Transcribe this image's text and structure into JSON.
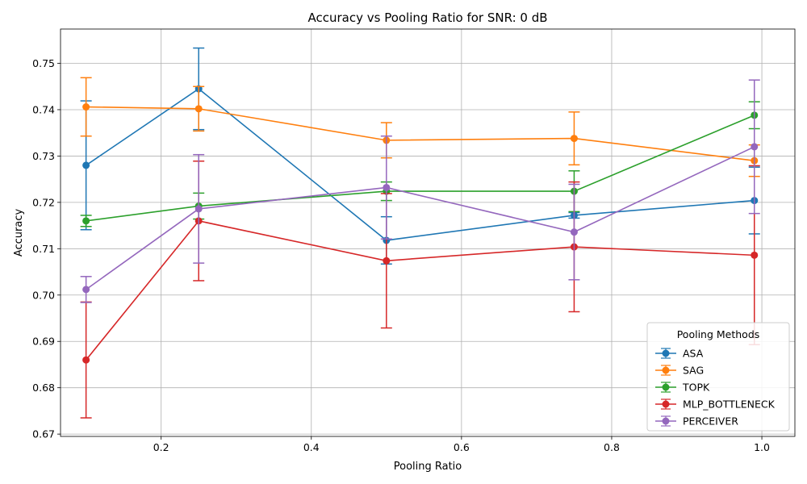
{
  "chart_data": {
    "type": "line",
    "title": "Accuracy vs Pooling Ratio for SNR: 0 dB",
    "xlabel": "Pooling Ratio",
    "ylabel": "Accuracy",
    "x": [
      0.1,
      0.25,
      0.5,
      0.75,
      0.99
    ],
    "xlim": [
      0.066,
      1.044
    ],
    "ylim": [
      0.6695,
      0.7574
    ],
    "xticks": [
      0.2,
      0.4,
      0.6,
      0.8,
      1.0
    ],
    "xtick_labels": [
      "0.2",
      "0.4",
      "0.6",
      "0.8",
      "1.0"
    ],
    "yticks": [
      0.67,
      0.68,
      0.69,
      0.7,
      0.71,
      0.72,
      0.73,
      0.74,
      0.75
    ],
    "ytick_labels": [
      "0.67",
      "0.68",
      "0.69",
      "0.70",
      "0.71",
      "0.72",
      "0.73",
      "0.74",
      "0.75"
    ],
    "grid": true,
    "legend_title": "Pooling Methods",
    "legend_position": "lower-right",
    "series": [
      {
        "name": "ASA",
        "color": "#1f77b4",
        "values": [
          0.728,
          0.7445,
          0.7118,
          0.7172,
          0.7204
        ],
        "errors": [
          0.0139,
          0.0088,
          0.0051,
          0.0006,
          0.0072
        ]
      },
      {
        "name": "SAG",
        "color": "#ff7f0e",
        "values": [
          0.7406,
          0.7402,
          0.7334,
          0.7338,
          0.729
        ],
        "errors": [
          0.0063,
          0.0048,
          0.0038,
          0.0057,
          0.0034
        ]
      },
      {
        "name": "TOPK",
        "color": "#2ca02c",
        "values": [
          0.716,
          0.7192,
          0.7224,
          0.7224,
          0.7388
        ],
        "errors": [
          0.0012,
          0.0028,
          0.002,
          0.0044,
          0.0029
        ]
      },
      {
        "name": "MLP_BOTTLENECK",
        "color": "#d62728",
        "values": [
          0.686,
          0.716,
          0.7074,
          0.7104,
          0.7086
        ],
        "errors": [
          0.0125,
          0.0129,
          0.0145,
          0.014,
          0.0193
        ]
      },
      {
        "name": "PERCEIVER",
        "color": "#9467bd",
        "values": [
          0.7012,
          0.7186,
          0.7232,
          0.7136,
          0.732
        ],
        "errors": [
          0.0028,
          0.0117,
          0.0111,
          0.0103,
          0.0144
        ]
      }
    ]
  }
}
